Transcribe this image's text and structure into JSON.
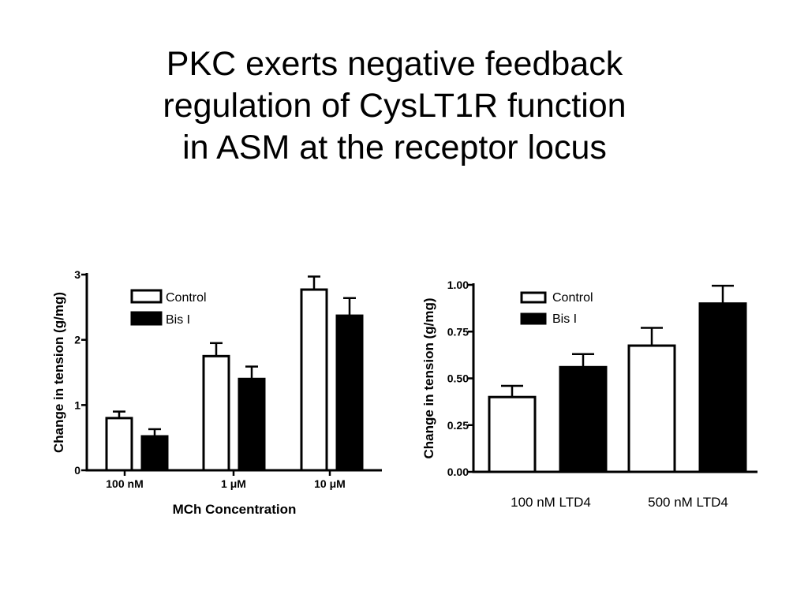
{
  "slide": {
    "title_lines": [
      "PKC exerts negative feedback",
      "regulation of CysLT1R function",
      "in ASM at the receptor locus"
    ]
  },
  "colors": {
    "control_fill": "#ffffff",
    "bis_fill": "#000000",
    "axis": "#000000"
  },
  "chart_data": [
    {
      "type": "bar",
      "categories": [
        "100 nM",
        "1 μM",
        "10 μM"
      ],
      "series": [
        {
          "name": "Control",
          "values": [
            0.8,
            1.75,
            2.77
          ],
          "errors": [
            0.1,
            0.2,
            0.2
          ]
        },
        {
          "name": "Bis I",
          "values": [
            0.52,
            1.4,
            2.37
          ],
          "errors": [
            0.11,
            0.19,
            0.27
          ]
        }
      ],
      "title": "",
      "xlabel": "MCh Concentration",
      "ylabel": "Change in tension (g/mg)",
      "ylim": [
        0,
        3
      ],
      "yticks": [
        "0",
        "1",
        "2",
        "3"
      ],
      "legend_position": "top-left",
      "grid": false
    },
    {
      "type": "bar",
      "categories": [
        "100 nM LTD4",
        "500 nM LTD4"
      ],
      "series": [
        {
          "name": "Control",
          "values": [
            0.4,
            0.675
          ],
          "errors": [
            0.06,
            0.095
          ]
        },
        {
          "name": "Bis I",
          "values": [
            0.56,
            0.9
          ],
          "errors": [
            0.07,
            0.095
          ]
        }
      ],
      "title": "",
      "xlabel": "",
      "ylabel": "Change in tension (g/mg)",
      "ylim": [
        0,
        1.0
      ],
      "yticks": [
        "0.00",
        "0.25",
        "0.50",
        "0.75",
        "1.00"
      ],
      "legend_position": "top-left",
      "grid": false
    }
  ]
}
